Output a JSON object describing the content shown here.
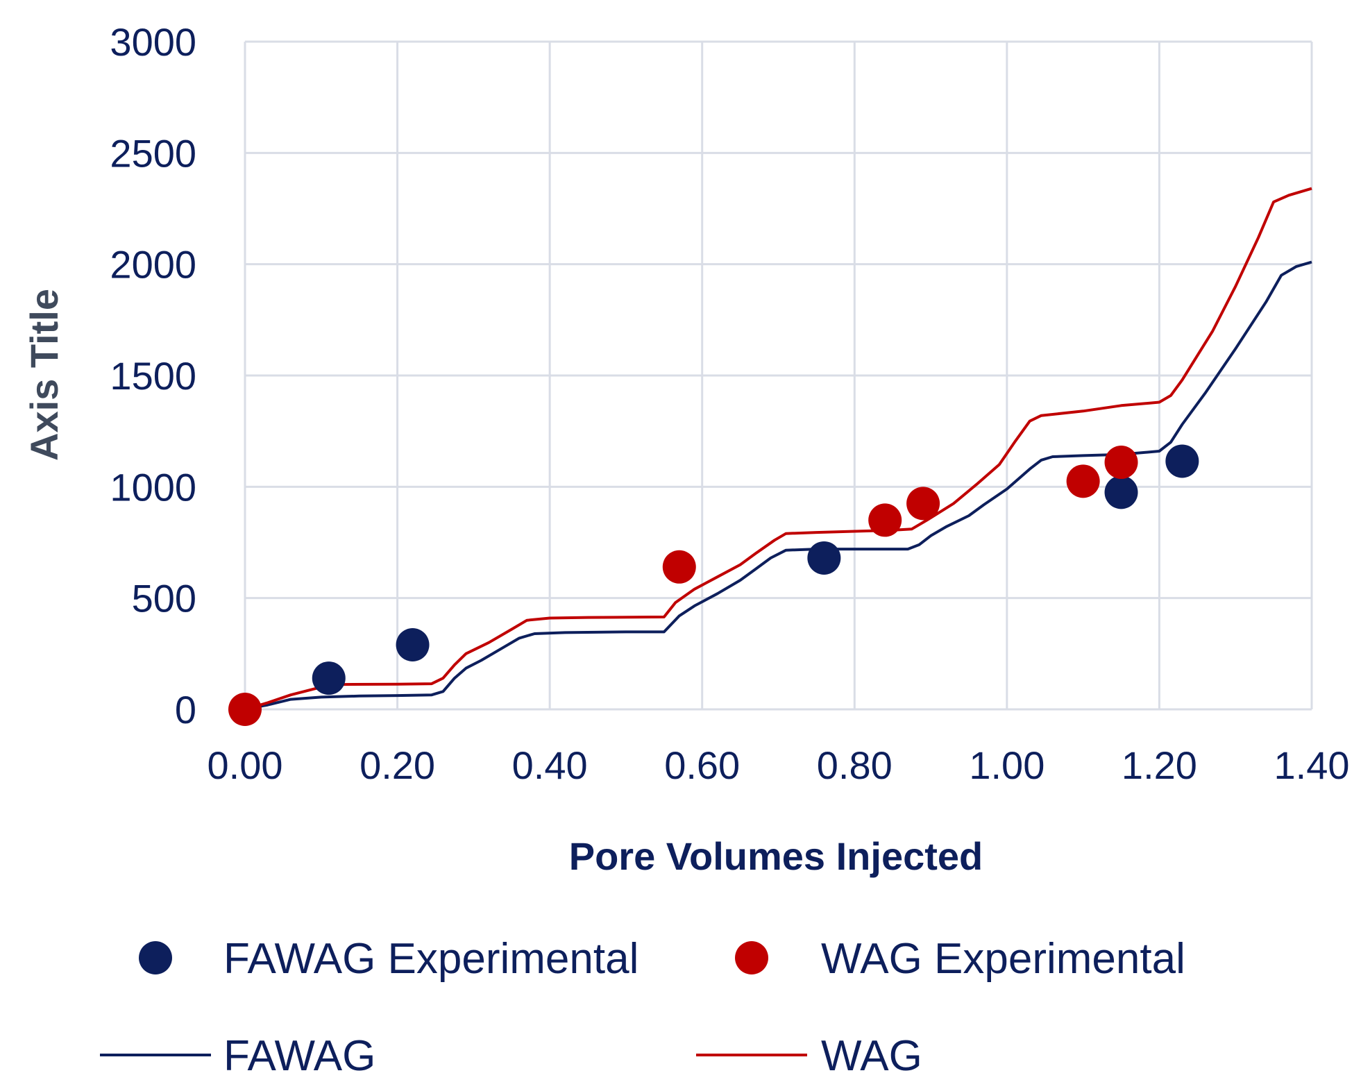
{
  "chart_data": {
    "type": "scatter",
    "xlabel": "Pore Volumes Injected",
    "ylabel": "Axis Title",
    "xlim": [
      0,
      1.4
    ],
    "ylim": [
      0,
      3000
    ],
    "x_ticks": [
      0,
      0.2,
      0.4,
      0.6,
      0.8,
      1.0,
      1.2,
      1.4
    ],
    "x_tick_labels": [
      "0.00",
      "0.20",
      "0.40",
      "0.60",
      "0.80",
      "1.00",
      "1.20",
      "1.40"
    ],
    "y_ticks": [
      0,
      500,
      1000,
      1500,
      2000,
      2500,
      3000
    ],
    "y_tick_labels": [
      "0",
      "500",
      "1000",
      "1500",
      "2000",
      "2500",
      "3000"
    ],
    "grid": true,
    "legend_position": "bottom",
    "colors": {
      "fawag": "#0d1f5c",
      "wag": "#c00000",
      "grid": "#d9dde6",
      "axis_title": "#3f4a5c"
    },
    "series": [
      {
        "name": "FAWAG Experimental",
        "kind": "scatter",
        "color": "#0d1f5c",
        "points": [
          [
            0.11,
            140
          ],
          [
            0.22,
            290
          ],
          [
            0.76,
            680
          ],
          [
            1.15,
            975
          ],
          [
            1.23,
            1115
          ]
        ]
      },
      {
        "name": "WAG Experimental",
        "kind": "scatter",
        "color": "#c00000",
        "points": [
          [
            0.0,
            0
          ],
          [
            0.57,
            640
          ],
          [
            0.84,
            850
          ],
          [
            0.89,
            925
          ],
          [
            1.1,
            1025
          ],
          [
            1.15,
            1110
          ]
        ]
      },
      {
        "name": "FAWAG",
        "kind": "line",
        "color": "#0d1f5c",
        "points": [
          [
            0.0,
            0
          ],
          [
            0.03,
            20
          ],
          [
            0.06,
            45
          ],
          [
            0.1,
            55
          ],
          [
            0.15,
            60
          ],
          [
            0.2,
            62
          ],
          [
            0.245,
            65
          ],
          [
            0.26,
            80
          ],
          [
            0.275,
            140
          ],
          [
            0.29,
            185
          ],
          [
            0.31,
            220
          ],
          [
            0.34,
            280
          ],
          [
            0.36,
            320
          ],
          [
            0.38,
            340
          ],
          [
            0.42,
            345
          ],
          [
            0.5,
            348
          ],
          [
            0.55,
            348
          ],
          [
            0.57,
            420
          ],
          [
            0.59,
            465
          ],
          [
            0.62,
            520
          ],
          [
            0.65,
            580
          ],
          [
            0.67,
            630
          ],
          [
            0.69,
            680
          ],
          [
            0.71,
            715
          ],
          [
            0.75,
            720
          ],
          [
            0.82,
            720
          ],
          [
            0.87,
            720
          ],
          [
            0.885,
            740
          ],
          [
            0.9,
            780
          ],
          [
            0.92,
            820
          ],
          [
            0.95,
            870
          ],
          [
            0.97,
            920
          ],
          [
            1.0,
            990
          ],
          [
            1.03,
            1080
          ],
          [
            1.045,
            1120
          ],
          [
            1.06,
            1135
          ],
          [
            1.1,
            1140
          ],
          [
            1.15,
            1145
          ],
          [
            1.2,
            1160
          ],
          [
            1.215,
            1200
          ],
          [
            1.23,
            1280
          ],
          [
            1.26,
            1420
          ],
          [
            1.3,
            1620
          ],
          [
            1.34,
            1830
          ],
          [
            1.36,
            1950
          ],
          [
            1.38,
            1990
          ],
          [
            1.4,
            2010
          ]
        ]
      },
      {
        "name": "WAG",
        "kind": "line",
        "color": "#c00000",
        "points": [
          [
            0.0,
            0
          ],
          [
            0.03,
            30
          ],
          [
            0.06,
            65
          ],
          [
            0.1,
            100
          ],
          [
            0.13,
            112
          ],
          [
            0.2,
            113
          ],
          [
            0.245,
            115
          ],
          [
            0.26,
            140
          ],
          [
            0.275,
            200
          ],
          [
            0.29,
            250
          ],
          [
            0.32,
            300
          ],
          [
            0.35,
            360
          ],
          [
            0.37,
            400
          ],
          [
            0.4,
            410
          ],
          [
            0.45,
            413
          ],
          [
            0.55,
            415
          ],
          [
            0.565,
            480
          ],
          [
            0.59,
            540
          ],
          [
            0.62,
            595
          ],
          [
            0.65,
            650
          ],
          [
            0.67,
            700
          ],
          [
            0.695,
            760
          ],
          [
            0.71,
            790
          ],
          [
            0.75,
            795
          ],
          [
            0.8,
            800
          ],
          [
            0.85,
            805
          ],
          [
            0.875,
            810
          ],
          [
            0.895,
            850
          ],
          [
            0.93,
            925
          ],
          [
            0.96,
            1010
          ],
          [
            0.99,
            1100
          ],
          [
            1.01,
            1200
          ],
          [
            1.03,
            1295
          ],
          [
            1.045,
            1320
          ],
          [
            1.1,
            1340
          ],
          [
            1.15,
            1365
          ],
          [
            1.2,
            1380
          ],
          [
            1.215,
            1410
          ],
          [
            1.23,
            1480
          ],
          [
            1.27,
            1700
          ],
          [
            1.3,
            1900
          ],
          [
            1.33,
            2120
          ],
          [
            1.35,
            2280
          ],
          [
            1.37,
            2310
          ],
          [
            1.4,
            2340
          ]
        ]
      }
    ],
    "legend": [
      {
        "label": "FAWAG Experimental",
        "symbol": "marker",
        "color": "#0d1f5c"
      },
      {
        "label": "WAG Experimental",
        "symbol": "marker",
        "color": "#c00000"
      },
      {
        "label": "FAWAG",
        "symbol": "line",
        "color": "#0d1f5c"
      },
      {
        "label": "WAG",
        "symbol": "line",
        "color": "#c00000"
      }
    ]
  }
}
